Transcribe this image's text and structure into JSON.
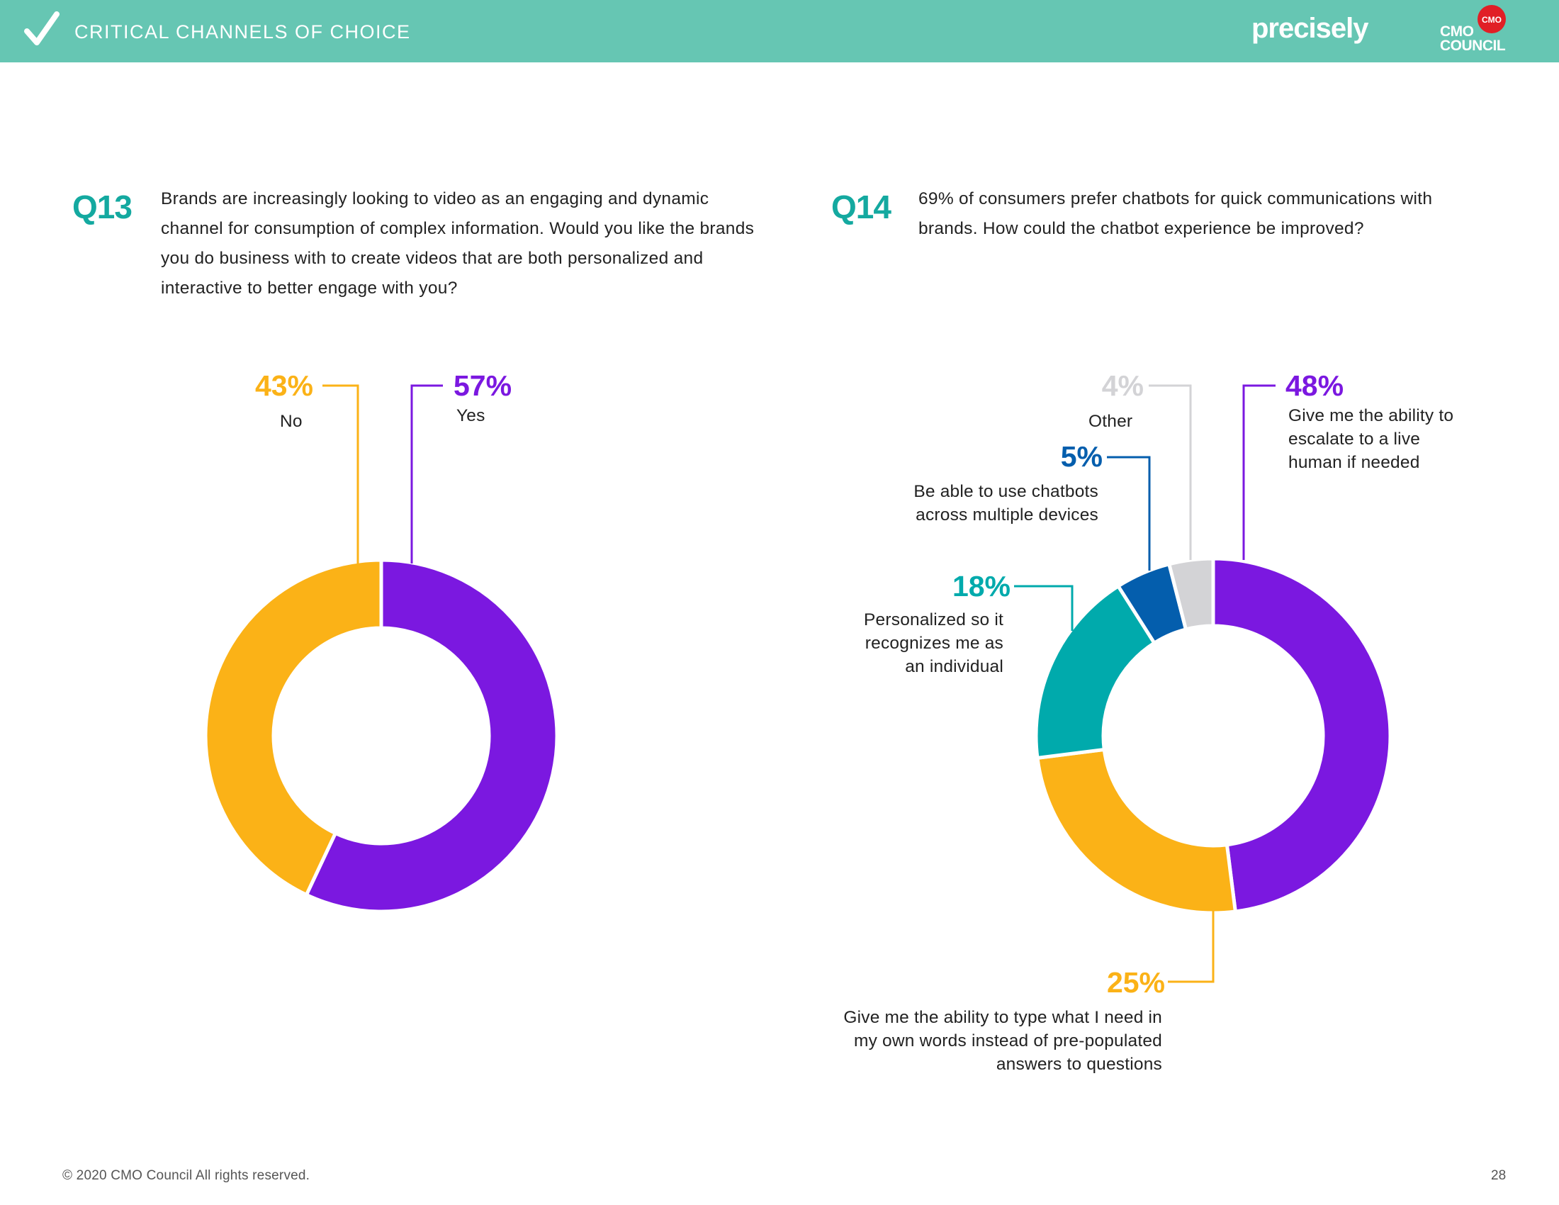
{
  "header": {
    "section_title": "CRITICAL CHANNELS OF CHOICE",
    "brand_precisely": "precisely",
    "cmo_logo_badge": "CMO",
    "cmo_logo_line1": "CMO",
    "cmo_logo_line2": "COUNCIL",
    "colors": {
      "bar": "#66c6b3",
      "cmo_red": "#e11f26"
    }
  },
  "q13": {
    "number": "Q13",
    "text": "Brands are increasingly looking to video as an engaging and dynamic channel for consumption of complex information. Would you like the brands you do business with to create videos that are both personalized and interactive to better engage with you?"
  },
  "q14": {
    "number": "Q14",
    "text": "69% of consumers prefer chatbots for quick communications with brands. How could the chatbot experience be improved?"
  },
  "chart_data": [
    {
      "type": "pie",
      "donut": true,
      "title": "",
      "categories": [
        "Yes",
        "No"
      ],
      "values": [
        57,
        43
      ],
      "labels": [
        "57%",
        "43%"
      ],
      "colors": [
        "#7b18e0",
        "#fbb217"
      ]
    },
    {
      "type": "pie",
      "donut": true,
      "title": "",
      "categories": [
        "Give me the ability to escalate to a live human if needed",
        "Give me the ability to type what I need in my own words instead of pre-populated answers to questions",
        "Personalized so it recognizes me as an individual",
        "Be able to use chatbots across multiple devices",
        "Other"
      ],
      "values": [
        48,
        25,
        18,
        5,
        4
      ],
      "labels": [
        "48%",
        "25%",
        "18%",
        "5%",
        "4%"
      ],
      "colors": [
        "#7b18e0",
        "#fbb217",
        "#00aaac",
        "#045ead",
        "#d3d3d6"
      ]
    }
  ],
  "footer": {
    "copyright": "© 2020 CMO Council  All rights reserved.",
    "page_number": "28"
  }
}
